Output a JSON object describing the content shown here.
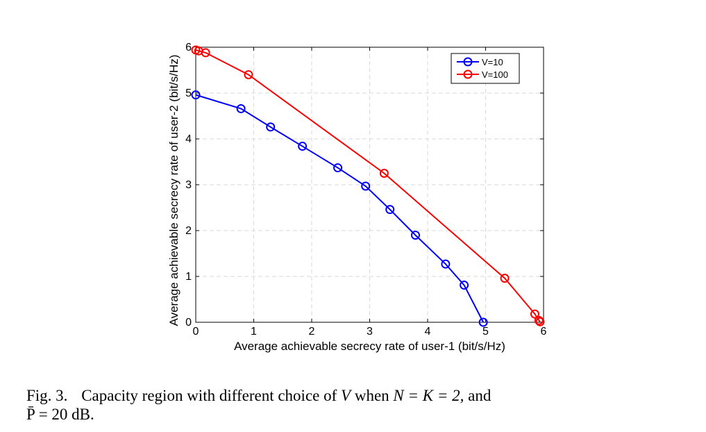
{
  "chart_data": {
    "type": "line",
    "xlabel": "Average achievable secrecy rate of user-1 (bit/s/Hz)",
    "ylabel": "Average achievable secrecy rate of user-2 (bit/s/Hz)",
    "xlim": [
      0,
      6
    ],
    "ylim": [
      0,
      6
    ],
    "xticks": [
      0,
      1,
      2,
      3,
      4,
      5,
      6
    ],
    "yticks": [
      0,
      1,
      2,
      3,
      4,
      5,
      6
    ],
    "grid": true,
    "legend_position": "top-right",
    "series": [
      {
        "name": "V=10",
        "color": "#0000ff",
        "marker": "circle",
        "x": [
          0.0,
          0.78,
          1.29,
          1.84,
          2.45,
          2.93,
          3.35,
          3.79,
          4.31,
          4.63,
          4.96
        ],
        "y": [
          4.96,
          4.66,
          4.26,
          3.84,
          3.37,
          2.97,
          2.46,
          1.9,
          1.27,
          0.81,
          0.0
        ]
      },
      {
        "name": "V=100",
        "color": "#ff0000",
        "marker": "circle",
        "x": [
          0.0,
          0.05,
          0.17,
          0.91,
          3.25,
          5.33,
          5.85,
          5.92,
          5.94
        ],
        "y": [
          5.94,
          5.92,
          5.88,
          5.4,
          3.25,
          0.96,
          0.18,
          0.04,
          0.01
        ]
      }
    ]
  },
  "caption": {
    "fig_number": "Fig. 3.",
    "line1_prefix": "Capacity region with different choice of",
    "symbol_v": "V",
    "line1_middle": "when",
    "equation": "N = K = 2,",
    "line1_suffix": "and",
    "line2": "P̄ = 20 dB."
  }
}
